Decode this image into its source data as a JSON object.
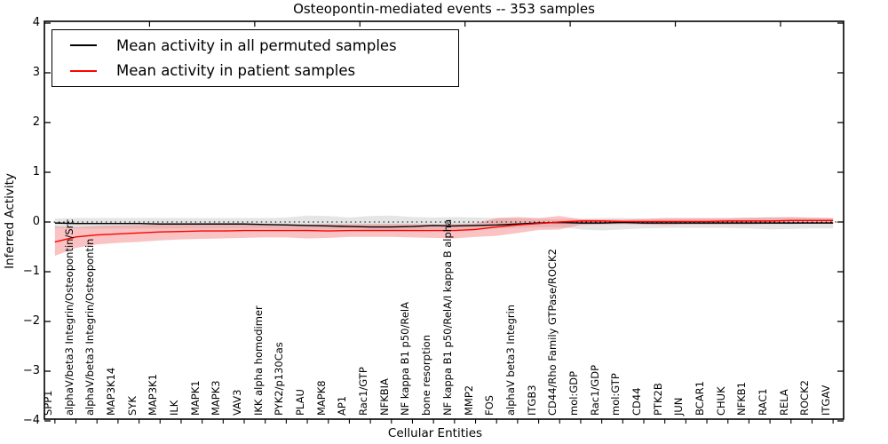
{
  "chart_data": {
    "type": "line",
    "title": "Osteopontin-mediated events -- 353 samples",
    "xlabel": "Cellular Entities",
    "ylabel": "Inferred Activity",
    "ylim": [
      -4,
      4
    ],
    "grid": false,
    "zero_line": {
      "style": "dotted",
      "color": "#000000",
      "y": 0
    },
    "legend_position": "upper-left",
    "yticks": [
      {
        "value": 4,
        "label": "4"
      },
      {
        "value": 3,
        "label": "3"
      },
      {
        "value": 2,
        "label": "2"
      },
      {
        "value": 1,
        "label": "1"
      },
      {
        "value": 0,
        "label": "0"
      },
      {
        "value": -1,
        "label": "−1"
      },
      {
        "value": -2,
        "label": "−2"
      },
      {
        "value": -3,
        "label": "−3"
      },
      {
        "value": -4,
        "label": "−4"
      }
    ],
    "categories": [
      "SPP1",
      "alphaV/beta3 Integrin/Osteopontin/Src",
      "alphaV/beta3 Integrin/Osteopontin",
      "MAP3K14",
      "SYK",
      "MAP3K1",
      "ILK",
      "MAPK1",
      "MAPK3",
      "VAV3",
      "IKK alpha homodimer",
      "PYK2/p130Cas",
      "PLAU",
      "MAPK8",
      "AP1",
      "Rac1/GTP",
      "NFKBIA",
      "NF kappa B1 p50/RelA",
      "bone resorption",
      "NF kappa B1 p50/RelA/I kappa B alpha",
      "MMP2",
      "FOS",
      "alphaV beta3 Integrin",
      "ITGB3",
      "CD44/Rho Family GTPase/ROCK2",
      "mol:GDP",
      "Rac1/GDP",
      "mol:GTP",
      "CD44",
      "PTK2B",
      "JUN",
      "BCAR1",
      "CHUK",
      "NFKB1",
      "RAC1",
      "RELA",
      "ROCK2",
      "ITGAV"
    ],
    "series": [
      {
        "name": "Mean activity in all permuted samples",
        "line_color": "#000000",
        "band_color": "#bbbbbb",
        "band_opacity": 0.38,
        "values": [
          -0.02,
          -0.03,
          -0.03,
          -0.03,
          -0.03,
          -0.04,
          -0.04,
          -0.04,
          -0.04,
          -0.04,
          -0.05,
          -0.06,
          -0.07,
          -0.08,
          -0.09,
          -0.1,
          -0.1,
          -0.09,
          -0.07,
          -0.08,
          -0.07,
          -0.06,
          -0.04,
          -0.02,
          -0.01,
          -0.02,
          -0.02,
          -0.01,
          -0.02,
          -0.02,
          -0.02,
          -0.02,
          -0.02,
          -0.02,
          -0.02,
          -0.02,
          -0.02,
          -0.02
        ],
        "band_upper": [
          0.07,
          0.08,
          0.08,
          0.08,
          0.08,
          0.08,
          0.08,
          0.08,
          0.08,
          0.08,
          0.08,
          0.09,
          0.13,
          0.12,
          0.09,
          0.12,
          0.13,
          0.1,
          0.09,
          0.1,
          0.09,
          0.08,
          0.07,
          0.06,
          0.05,
          0.06,
          0.08,
          0.08,
          0.07,
          0.07,
          0.07,
          0.07,
          0.07,
          0.08,
          0.1,
          0.09,
          0.08,
          0.08
        ],
        "band_lower": [
          -0.12,
          -0.13,
          -0.13,
          -0.13,
          -0.13,
          -0.13,
          -0.13,
          -0.13,
          -0.13,
          -0.13,
          -0.13,
          -0.14,
          -0.16,
          -0.15,
          -0.14,
          -0.16,
          -0.17,
          -0.15,
          -0.14,
          -0.15,
          -0.14,
          -0.13,
          -0.12,
          -0.11,
          -0.1,
          -0.15,
          -0.17,
          -0.15,
          -0.13,
          -0.12,
          -0.12,
          -0.12,
          -0.12,
          -0.13,
          -0.15,
          -0.14,
          -0.13,
          -0.13
        ]
      },
      {
        "name": "Mean activity in patient samples",
        "line_color": "#ff0000",
        "band_color": "#f07070",
        "band_opacity": 0.42,
        "values": [
          -0.4,
          -0.3,
          -0.26,
          -0.24,
          -0.22,
          -0.2,
          -0.19,
          -0.18,
          -0.18,
          -0.17,
          -0.17,
          -0.17,
          -0.17,
          -0.18,
          -0.17,
          -0.17,
          -0.17,
          -0.17,
          -0.17,
          -0.17,
          -0.15,
          -0.1,
          -0.06,
          -0.03,
          0.0,
          0.02,
          0.02,
          0.01,
          0.01,
          0.01,
          0.01,
          0.01,
          0.02,
          0.02,
          0.02,
          0.03,
          0.03,
          0.03
        ],
        "band_upper": [
          -0.09,
          -0.1,
          -0.08,
          -0.07,
          -0.06,
          -0.05,
          -0.05,
          -0.05,
          -0.05,
          -0.04,
          -0.04,
          -0.04,
          -0.05,
          -0.04,
          -0.04,
          -0.04,
          -0.04,
          -0.04,
          -0.05,
          -0.04,
          -0.03,
          0.08,
          0.1,
          0.08,
          0.12,
          0.06,
          0.05,
          0.05,
          0.06,
          0.08,
          0.08,
          0.08,
          0.08,
          0.09,
          0.09,
          0.1,
          0.09,
          0.08
        ],
        "band_lower": [
          -0.68,
          -0.52,
          -0.45,
          -0.42,
          -0.4,
          -0.37,
          -0.35,
          -0.34,
          -0.33,
          -0.32,
          -0.31,
          -0.31,
          -0.33,
          -0.32,
          -0.3,
          -0.3,
          -0.3,
          -0.31,
          -0.32,
          -0.33,
          -0.3,
          -0.28,
          -0.22,
          -0.16,
          -0.15,
          -0.06,
          -0.05,
          -0.04,
          -0.05,
          -0.06,
          -0.05,
          -0.05,
          -0.05,
          -0.05,
          -0.04,
          -0.04,
          -0.03,
          -0.02
        ]
      }
    ],
    "legend": {
      "entries": [
        {
          "label": "Mean activity in all permuted samples",
          "color": "#000000"
        },
        {
          "label": "Mean activity in patient samples",
          "color": "#ff0000"
        }
      ]
    }
  }
}
